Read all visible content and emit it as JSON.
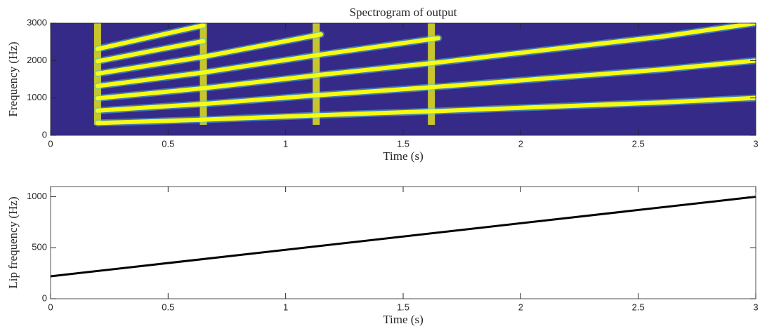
{
  "chart_data": [
    {
      "type": "spectrogram",
      "title": "Spectrogram of output",
      "xlabel": "Time (s)",
      "ylabel": "Frequency (Hz)",
      "background": "#352a87",
      "color": "#f9fb0e",
      "x": [
        0.2,
        0.65,
        1.15,
        1.65,
        2.1,
        2.6,
        3
      ],
      "tracks": [
        {
          "values": [
            330,
            420,
            540,
            650,
            760,
            880,
            1000
          ]
        },
        {
          "values": [
            660,
            840,
            1080,
            1300,
            1520,
            1760,
            2000
          ]
        },
        {
          "values": [
            990,
            1260,
            1620,
            1950,
            2280,
            2640,
            3000
          ]
        },
        {
          "values": [
            1320,
            1680,
            2160,
            2600,
            null,
            null,
            null
          ]
        },
        {
          "values": [
            1650,
            2100,
            2700,
            null,
            null,
            null,
            null
          ]
        },
        {
          "values": [
            1980,
            2520,
            null,
            null,
            null,
            null,
            null
          ]
        },
        {
          "values": [
            2310,
            2940,
            null,
            null,
            null,
            null,
            null
          ]
        }
      ],
      "onsets": [
        0.2,
        0.65,
        1.13,
        1.62
      ],
      "xlim": [
        0,
        3
      ],
      "xticks": [
        0,
        0.5,
        1,
        1.5,
        2,
        2.5,
        3
      ],
      "ylim": [
        0,
        3000
      ],
      "yticks": [
        0,
        1000,
        2000,
        3000
      ]
    },
    {
      "type": "line",
      "xlabel": "Time (s)",
      "ylabel": "Lip frequency (Hz)",
      "color": "#000000",
      "x": [
        0,
        3
      ],
      "values": [
        220,
        1000
      ],
      "xlim": [
        0,
        3
      ],
      "xticks": [
        0,
        0.5,
        1,
        1.5,
        2,
        2.5,
        3
      ],
      "ylim": [
        0,
        1100
      ],
      "yticks": [
        0,
        500,
        1000
      ]
    }
  ]
}
